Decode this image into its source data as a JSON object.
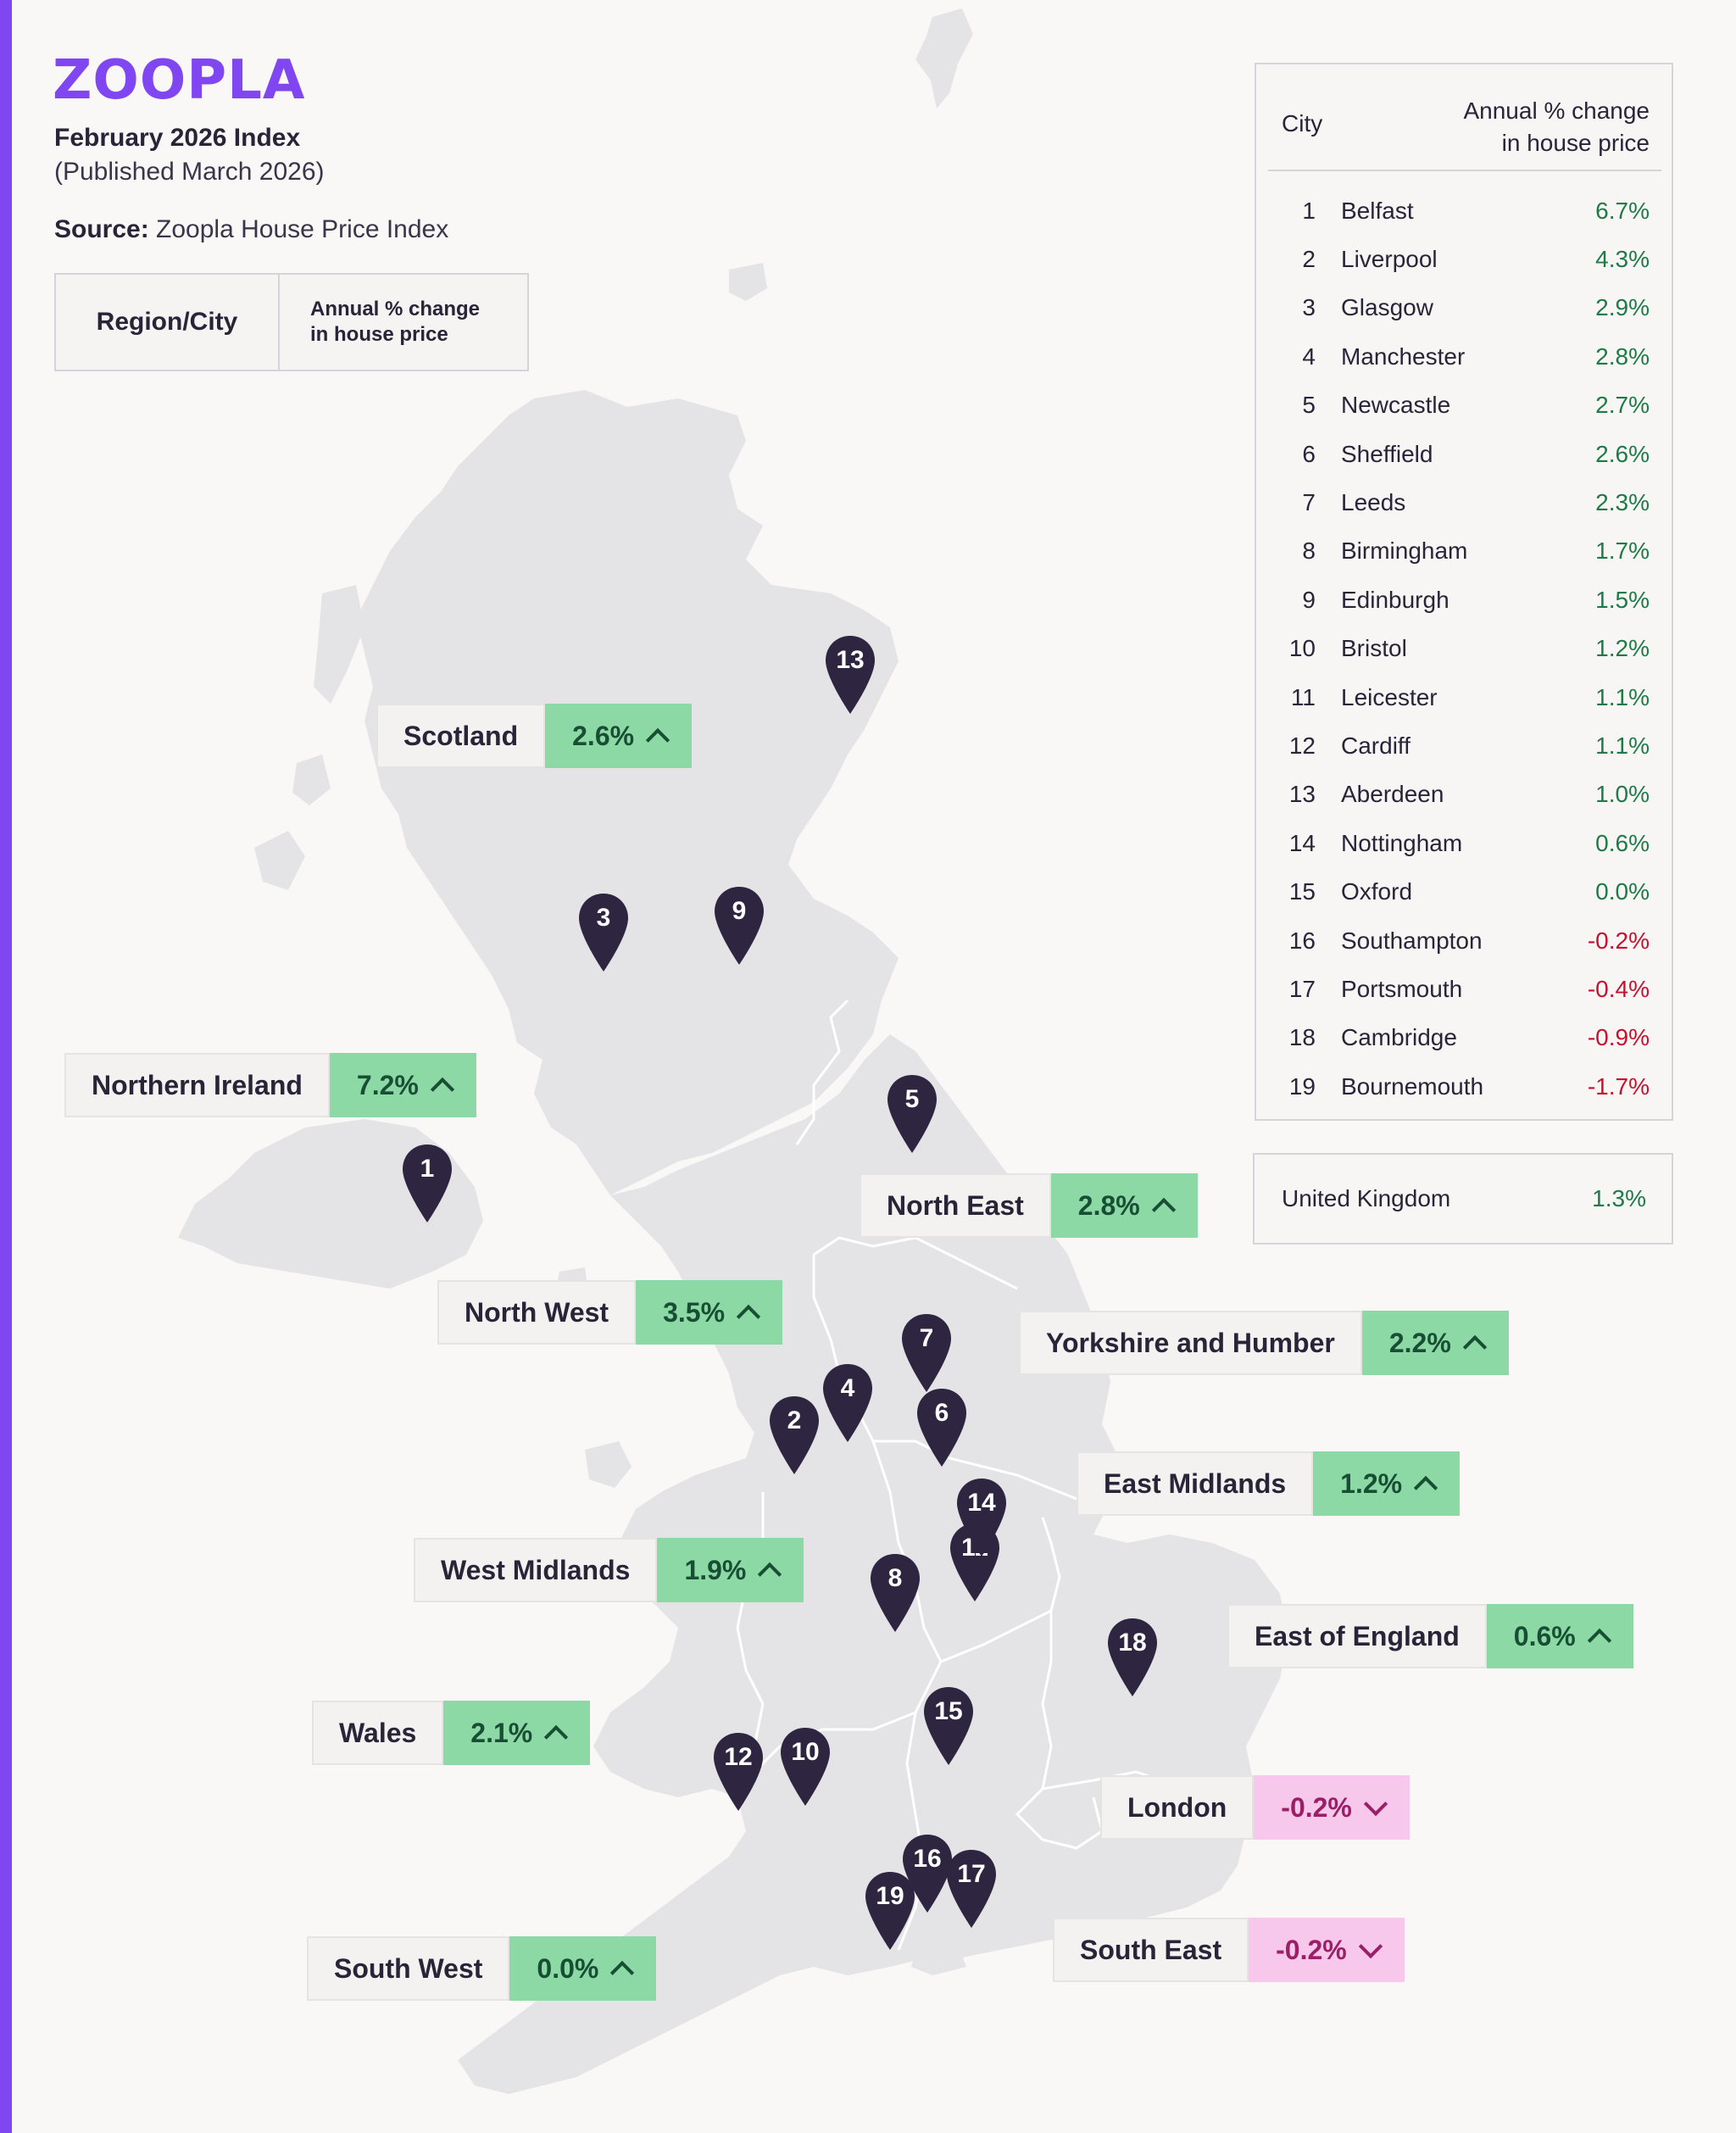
{
  "brand": {
    "logo_text": "ZOOPLA",
    "accent": "#8046F1"
  },
  "header": {
    "index_title": "February 2026 Index",
    "published": "(Published March 2026)",
    "source_label": "Source:",
    "source_text": "Zoopla House Price Index"
  },
  "legend": {
    "left": "Region/City",
    "right_line1": "Annual % change",
    "right_line2": "in house price"
  },
  "regions": [
    {
      "name": "Scotland",
      "value": "2.6%",
      "trend": "up"
    },
    {
      "name": "Northern Ireland",
      "value": "7.2%",
      "trend": "up"
    },
    {
      "name": "North East",
      "value": "2.8%",
      "trend": "up"
    },
    {
      "name": "North West",
      "value": "3.5%",
      "trend": "up"
    },
    {
      "name": "Yorkshire and Humber",
      "value": "2.2%",
      "trend": "up"
    },
    {
      "name": "East Midlands",
      "value": "1.2%",
      "trend": "up"
    },
    {
      "name": "West Midlands",
      "value": "1.9%",
      "trend": "up"
    },
    {
      "name": "East of England",
      "value": "0.6%",
      "trend": "up"
    },
    {
      "name": "Wales",
      "value": "2.1%",
      "trend": "up"
    },
    {
      "name": "London",
      "value": "-0.2%",
      "trend": "down"
    },
    {
      "name": "South East",
      "value": "-0.2%",
      "trend": "down"
    },
    {
      "name": "South West",
      "value": "0.0%",
      "trend": "up"
    }
  ],
  "pins": [
    "1",
    "2",
    "3",
    "4",
    "5",
    "6",
    "7",
    "8",
    "9",
    "10",
    "11",
    "12",
    "13",
    "14",
    "15",
    "16",
    "17",
    "18",
    "19"
  ],
  "city_table": {
    "header_city": "City",
    "header_value_line1": "Annual % change",
    "header_value_line2": "in house price",
    "rows": [
      {
        "rank": "1",
        "city": "Belfast",
        "value": "6.7%"
      },
      {
        "rank": "2",
        "city": "Liverpool",
        "value": "4.3%"
      },
      {
        "rank": "3",
        "city": "Glasgow",
        "value": "2.9%"
      },
      {
        "rank": "4",
        "city": "Manchester",
        "value": "2.8%"
      },
      {
        "rank": "5",
        "city": "Newcastle",
        "value": "2.7%"
      },
      {
        "rank": "6",
        "city": "Sheffield",
        "value": "2.6%"
      },
      {
        "rank": "7",
        "city": "Leeds",
        "value": "2.3%"
      },
      {
        "rank": "8",
        "city": "Birmingham",
        "value": "1.7%"
      },
      {
        "rank": "9",
        "city": "Edinburgh",
        "value": "1.5%"
      },
      {
        "rank": "10",
        "city": "Bristol",
        "value": "1.2%"
      },
      {
        "rank": "11",
        "city": "Leicester",
        "value": "1.1%"
      },
      {
        "rank": "12",
        "city": "Cardiff",
        "value": "1.1%"
      },
      {
        "rank": "13",
        "city": "Aberdeen",
        "value": "1.0%"
      },
      {
        "rank": "14",
        "city": "Nottingham",
        "value": "0.6%"
      },
      {
        "rank": "15",
        "city": "Oxford",
        "value": "0.0%"
      },
      {
        "rank": "16",
        "city": "Southampton",
        "value": "-0.2%"
      },
      {
        "rank": "17",
        "city": "Portsmouth",
        "value": "-0.4%"
      },
      {
        "rank": "18",
        "city": "Cambridge",
        "value": "-0.9%"
      },
      {
        "rank": "19",
        "city": "Bournemouth",
        "value": "-1.7%"
      }
    ]
  },
  "uk_summary": {
    "name": "United Kingdom",
    "value": "1.3%"
  },
  "colors": {
    "land": "#E4E3E6",
    "pin": "#2E2640",
    "positive_bg": "#8CD9A6",
    "negative_bg": "#F8C7EC",
    "positive_text": "#1E7A47",
    "negative_text": "#C8102E"
  }
}
